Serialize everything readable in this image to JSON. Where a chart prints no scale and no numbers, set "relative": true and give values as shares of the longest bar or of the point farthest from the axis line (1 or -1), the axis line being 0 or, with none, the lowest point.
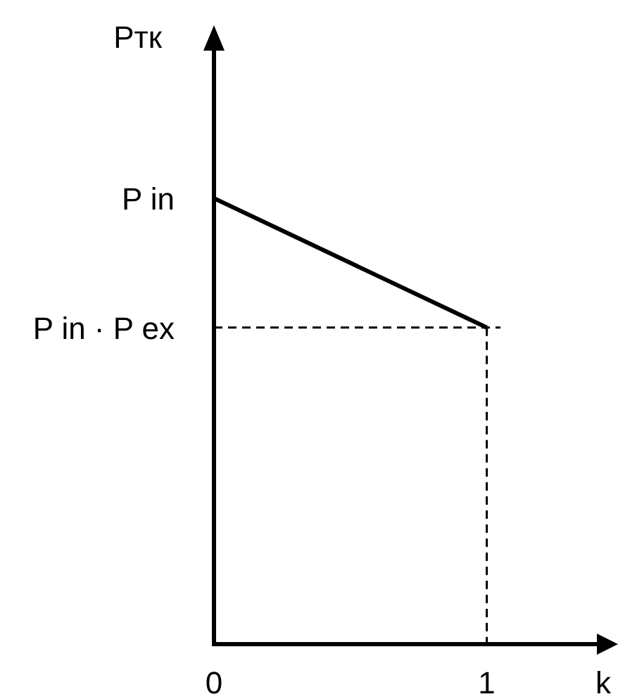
{
  "chart_data": {
    "type": "line",
    "xlabel": "k",
    "ylabel": "Ртк",
    "relative": true,
    "xlim": [
      0,
      1.45
    ],
    "xticks": [
      0,
      1
    ],
    "annotations": [
      {
        "text": "P in",
        "x": 0,
        "y": 1
      },
      {
        "text": "P in · P ex",
        "x": 0,
        "y": 0.71
      }
    ],
    "series": [
      {
        "x": [
          0,
          1
        ],
        "values": [
          1,
          0.71
        ],
        "color": "#000000"
      },
      {
        "x": [
          0,
          1.05
        ],
        "values": [
          0.71,
          0.71
        ],
        "color": "#000000",
        "line_style": "dashed"
      },
      {
        "x": [
          1,
          1
        ],
        "values": [
          0.71,
          0
        ],
        "color": "#000000",
        "line_style": "dashed"
      }
    ]
  }
}
